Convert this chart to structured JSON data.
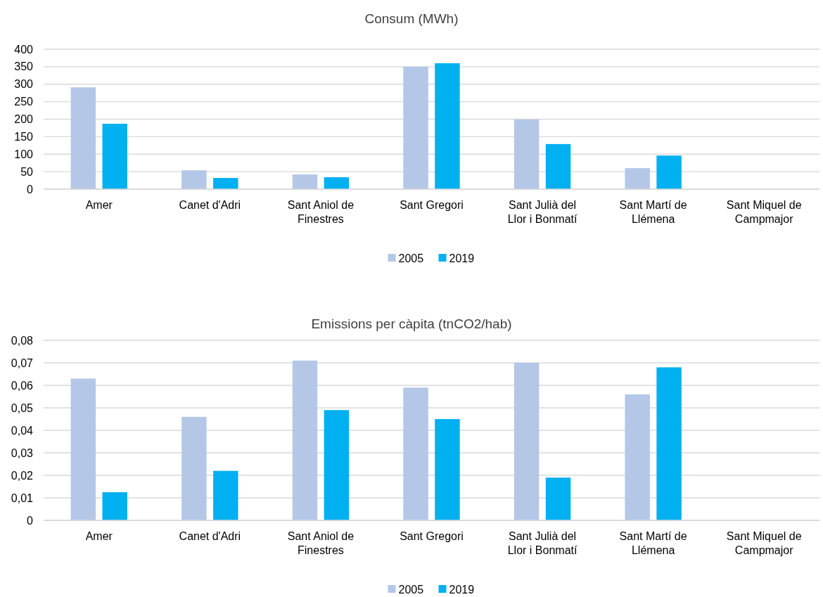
{
  "chart_data": [
    {
      "type": "bar",
      "title": "Consum (MWh)",
      "categories": [
        "Amer",
        "Canet d'Adri",
        "Sant Aniol de Finestres",
        "Sant Gregori",
        "Sant Julià del Llor i Bonmatí",
        "Sant Martí de Llémena",
        "Sant Miquel de Campmajor"
      ],
      "series": [
        {
          "name": "2005",
          "color": "#b4c7e7",
          "values": [
            291,
            54,
            42,
            350,
            199,
            60,
            null
          ]
        },
        {
          "name": "2019",
          "color": "#00b0f0",
          "values": [
            187,
            32,
            34,
            360,
            129,
            96,
            null
          ]
        }
      ],
      "ylim": [
        0,
        400
      ],
      "yticks": [
        0,
        50,
        100,
        150,
        200,
        250,
        300,
        350,
        400
      ],
      "grid": "y",
      "legend": "bottom"
    },
    {
      "type": "bar",
      "title": "Emissions per càpita (tnCO2/hab)",
      "categories": [
        "Amer",
        "Canet d'Adri",
        "Sant Aniol de Finestres",
        "Sant Gregori",
        "Sant Julià del Llor i Bonmatí",
        "Sant Martí de Llémena",
        "Sant Miquel de Campmajor"
      ],
      "series": [
        {
          "name": "2005",
          "color": "#b4c7e7",
          "values": [
            0.063,
            0.046,
            0.071,
            0.059,
            0.07,
            0.056,
            null
          ]
        },
        {
          "name": "2019",
          "color": "#00b0f0",
          "values": [
            0.0125,
            0.022,
            0.049,
            0.045,
            0.019,
            0.068,
            null
          ]
        }
      ],
      "ylim": [
        0,
        0.08
      ],
      "yticks": [
        0,
        {
          "value": 0.01,
          "label": "0,01"
        },
        {
          "value": 0.02,
          "label": "0,02"
        },
        {
          "value": 0.03,
          "label": "0,03"
        },
        {
          "value": 0.04,
          "label": "0,04"
        },
        {
          "value": 0.05,
          "label": "0,05"
        },
        {
          "value": 0.06,
          "label": "0,06"
        },
        {
          "value": 0.07,
          "label": "0,07"
        },
        {
          "value": 0.08,
          "label": "0,08"
        }
      ],
      "grid": "y",
      "legend": "bottom"
    }
  ]
}
